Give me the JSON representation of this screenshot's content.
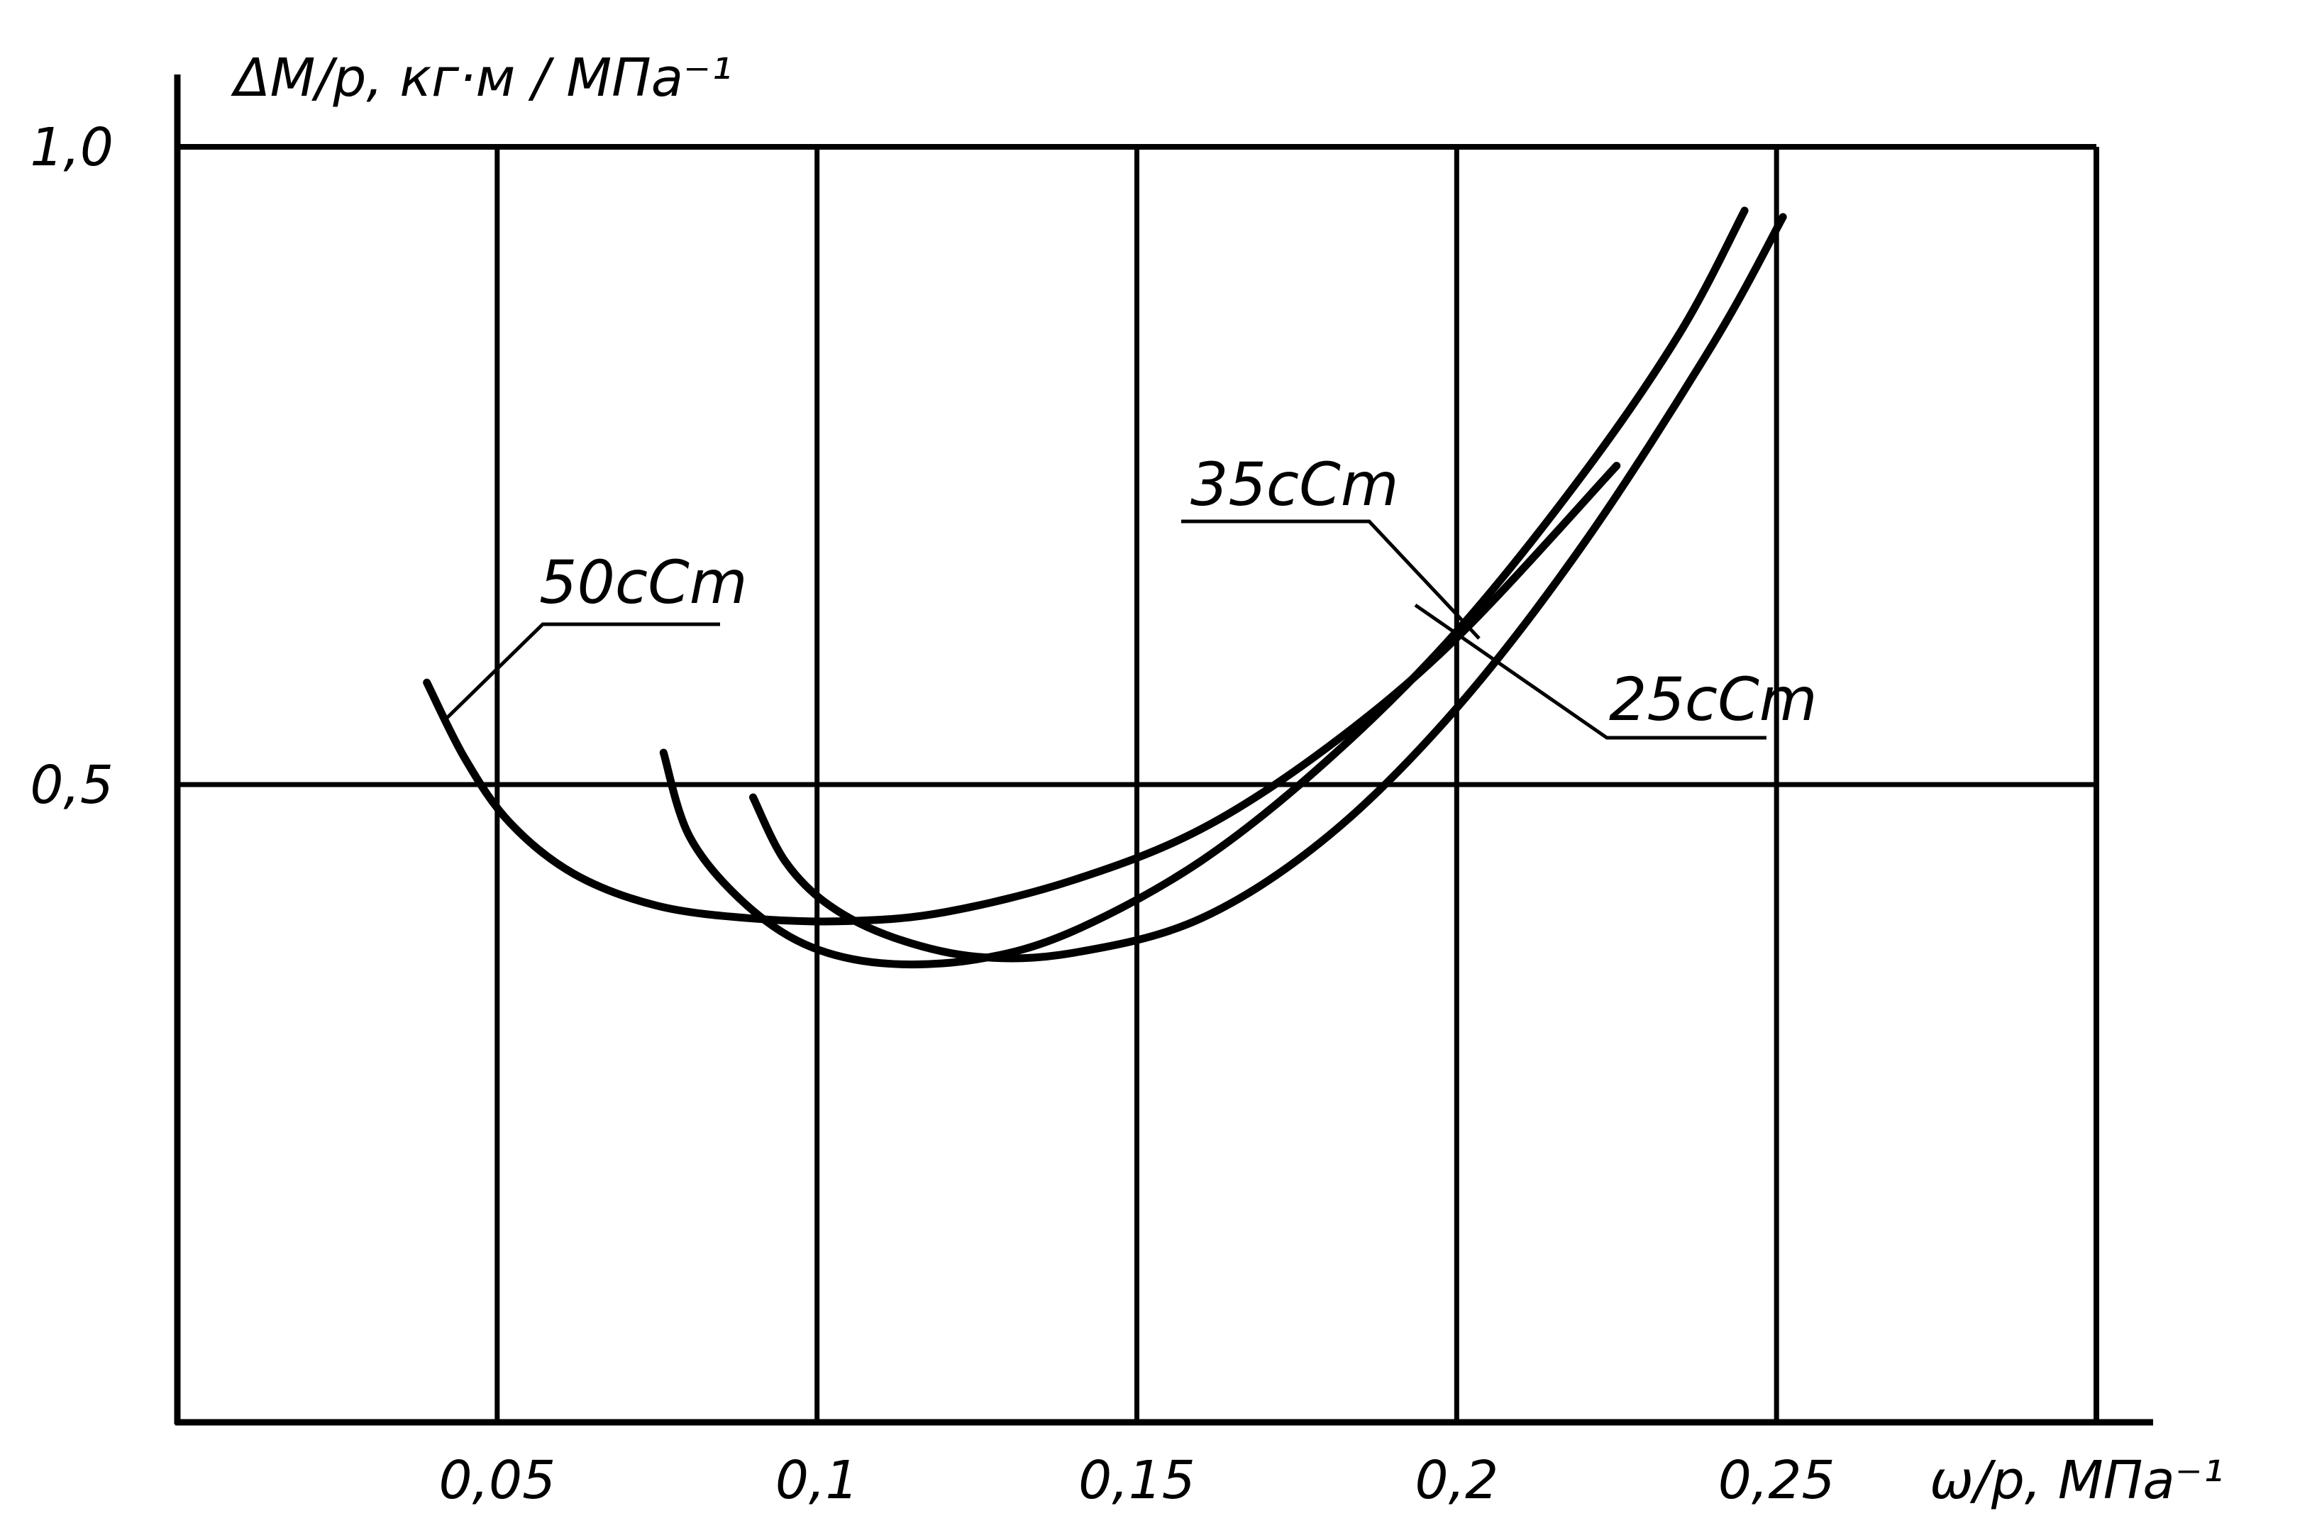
{
  "chart_data": {
    "type": "line",
    "ylabel": "ΔM/p, кг·м / МПа⁻¹",
    "xlabel": "ω/p, МПа⁻¹",
    "xlim": [
      0,
      0.3
    ],
    "ylim": [
      0,
      1.0
    ],
    "x_ticks": [
      {
        "value": 0.05,
        "label": "0,05"
      },
      {
        "value": 0.1,
        "label": "0,1"
      },
      {
        "value": 0.15,
        "label": "0,15"
      },
      {
        "value": 0.2,
        "label": "0,2"
      },
      {
        "value": 0.25,
        "label": "0,25"
      }
    ],
    "y_ticks": [
      {
        "value": 0.5,
        "label": "0,5"
      },
      {
        "value": 1.0,
        "label": "1,0"
      }
    ],
    "grid": true,
    "line_color": "#000000",
    "series": [
      {
        "name": "50cCm",
        "points": [
          [
            0.039,
            0.58
          ],
          [
            0.045,
            0.52
          ],
          [
            0.052,
            0.47
          ],
          [
            0.062,
            0.43
          ],
          [
            0.075,
            0.405
          ],
          [
            0.09,
            0.395
          ],
          [
            0.105,
            0.393
          ],
          [
            0.12,
            0.4
          ],
          [
            0.14,
            0.425
          ],
          [
            0.16,
            0.465
          ],
          [
            0.18,
            0.53
          ],
          [
            0.2,
            0.615
          ],
          [
            0.225,
            0.75
          ]
        ]
      },
      {
        "name": "35cCm",
        "points": [
          [
            0.076,
            0.525
          ],
          [
            0.08,
            0.46
          ],
          [
            0.088,
            0.41
          ],
          [
            0.098,
            0.375
          ],
          [
            0.11,
            0.36
          ],
          [
            0.125,
            0.363
          ],
          [
            0.14,
            0.385
          ],
          [
            0.16,
            0.44
          ],
          [
            0.18,
            0.52
          ],
          [
            0.2,
            0.62
          ],
          [
            0.22,
            0.745
          ],
          [
            0.235,
            0.855
          ],
          [
            0.245,
            0.95
          ]
        ]
      },
      {
        "name": "25cCm",
        "points": [
          [
            0.09,
            0.49
          ],
          [
            0.095,
            0.44
          ],
          [
            0.102,
            0.405
          ],
          [
            0.112,
            0.38
          ],
          [
            0.125,
            0.365
          ],
          [
            0.14,
            0.368
          ],
          [
            0.16,
            0.395
          ],
          [
            0.18,
            0.46
          ],
          [
            0.2,
            0.56
          ],
          [
            0.22,
            0.69
          ],
          [
            0.24,
            0.845
          ],
          [
            0.251,
            0.945
          ]
        ]
      }
    ],
    "annotations": [
      {
        "series": "50cCm",
        "text": "50cCm",
        "position": "upper-left"
      },
      {
        "series": "35cCm",
        "text": "35cCm",
        "position": "center-right"
      },
      {
        "series": "25cCm",
        "text": "25cCm",
        "position": "right"
      }
    ]
  }
}
